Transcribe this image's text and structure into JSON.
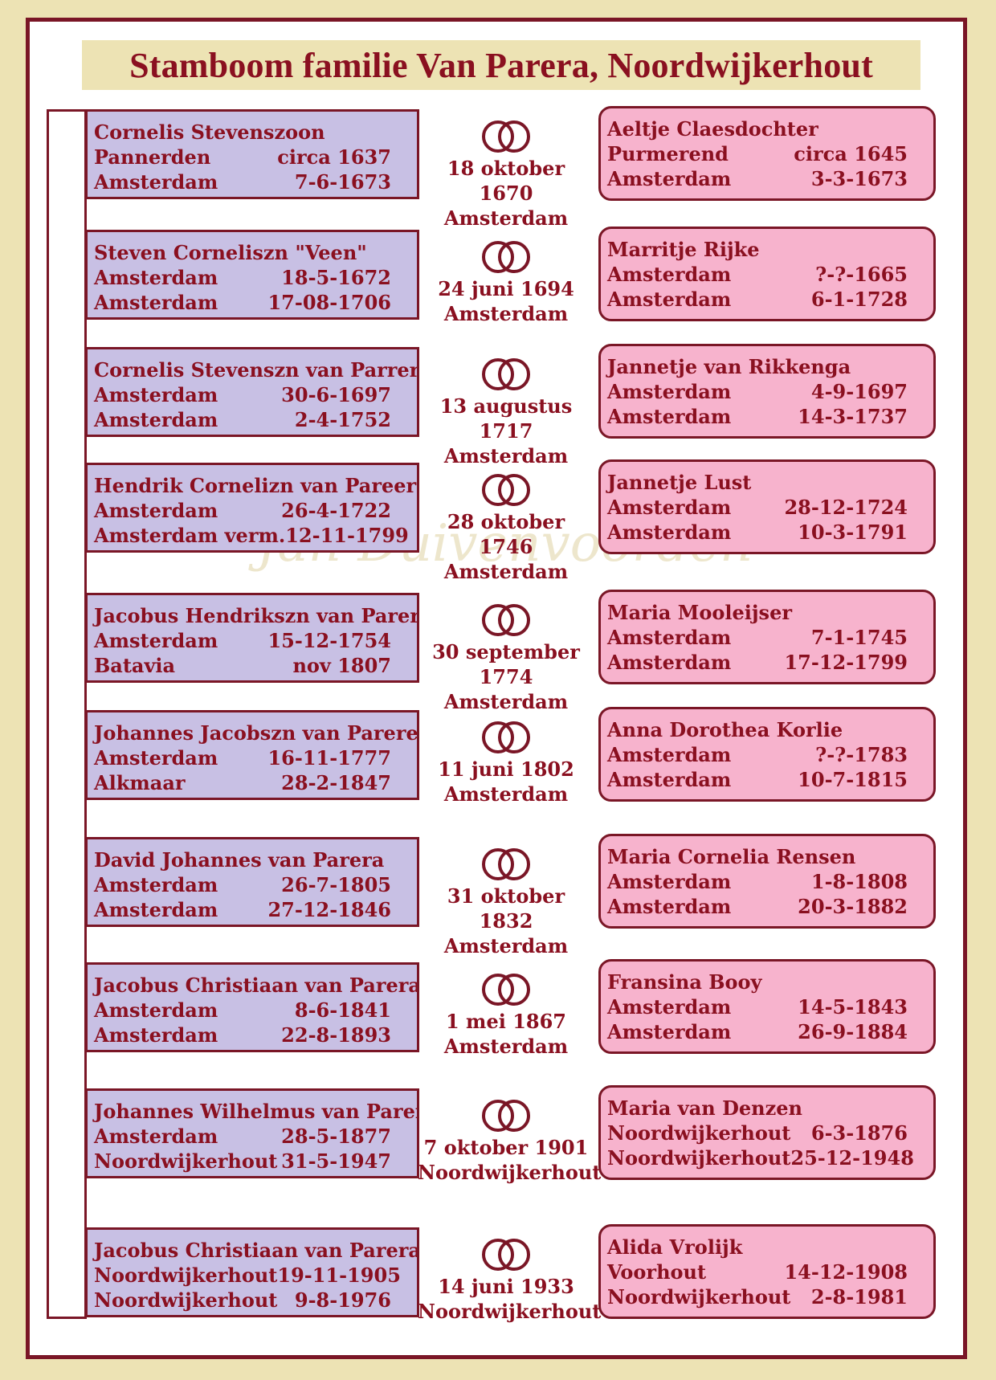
{
  "title": "Stamboom familie Van Parera, Noordwijkerhout",
  "watermark": "Jan Duivenvoorden",
  "generations": [
    {
      "husband": {
        "name": "Cornelis Stevenszoon",
        "birth_place": "Pannerden",
        "birth_date": "circa 1637",
        "death_place": "Amsterdam",
        "death_date": "7-6-1673"
      },
      "marriage": {
        "date": "18 oktober 1670",
        "place": "Amsterdam"
      },
      "wife": {
        "name": "Aeltje Claesdochter",
        "birth_place": "Purmerend",
        "birth_date": "circa 1645",
        "death_place": "Amsterdam",
        "death_date": "3-3-1673"
      }
    },
    {
      "husband": {
        "name": "Steven Corneliszn \"Veen\"",
        "birth_place": "Amsterdam",
        "birth_date": "18-5-1672",
        "death_place": "Amsterdam",
        "death_date": "17-08-1706"
      },
      "marriage": {
        "date": "24 juni 1694",
        "place": "Amsterdam"
      },
      "wife": {
        "name": "Marritje Rijke",
        "birth_place": "Amsterdam",
        "birth_date": "?-?-1665",
        "death_place": "Amsterdam",
        "death_date": "6-1-1728"
      }
    },
    {
      "husband": {
        "name": "Cornelis Stevenszn van Parrera",
        "birth_place": "Amsterdam",
        "birth_date": "30-6-1697",
        "death_place": "Amsterdam",
        "death_date": "2-4-1752"
      },
      "marriage": {
        "date": "13 augustus 1717",
        "place": "Amsterdam"
      },
      "wife": {
        "name": "Jannetje van Rikkenga",
        "birth_place": "Amsterdam",
        "birth_date": "4-9-1697",
        "death_place": "Amsterdam",
        "death_date": "14-3-1737"
      }
    },
    {
      "husband": {
        "name": "Hendrik Cornelizn van Pareeren",
        "birth_place": "Amsterdam",
        "birth_date": "26-4-1722",
        "death_place": "Amsterdam verm.",
        "death_date": "12-11-1799"
      },
      "marriage": {
        "date": "28 oktober 1746",
        "place": "Amsterdam"
      },
      "wife": {
        "name": "Jannetje Lust",
        "birth_place": "Amsterdam",
        "birth_date": "28-12-1724",
        "death_place": "Amsterdam",
        "death_date": "10-3-1791"
      }
    },
    {
      "husband": {
        "name": "Jacobus Hendrikszn van Parere",
        "birth_place": "Amsterdam",
        "birth_date": "15-12-1754",
        "death_place": "Batavia",
        "death_date": "nov 1807"
      },
      "marriage": {
        "date": "30 september 1774",
        "place": "Amsterdam"
      },
      "wife": {
        "name": "Maria Mooleijser",
        "birth_place": "Amsterdam",
        "birth_date": "7-1-1745",
        "death_place": "Amsterdam",
        "death_date": "17-12-1799"
      }
    },
    {
      "husband": {
        "name": "Johannes Jacobszn van Parere",
        "birth_place": "Amsterdam",
        "birth_date": "16-11-1777",
        "death_place": "Alkmaar",
        "death_date": "28-2-1847"
      },
      "marriage": {
        "date": "11 juni 1802",
        "place": "Amsterdam"
      },
      "wife": {
        "name": "Anna Dorothea Korlie",
        "birth_place": "Amsterdam",
        "birth_date": "?-?-1783",
        "death_place": "Amsterdam",
        "death_date": "10-7-1815"
      }
    },
    {
      "husband": {
        "name": "David Johannes van Parera",
        "birth_place": "Amsterdam",
        "birth_date": "26-7-1805",
        "death_place": "Amsterdam",
        "death_date": "27-12-1846"
      },
      "marriage": {
        "date": "31 oktober 1832",
        "place": "Amsterdam"
      },
      "wife": {
        "name": "Maria Cornelia Rensen",
        "birth_place": "Amsterdam",
        "birth_date": "1-8-1808",
        "death_place": "Amsterdam",
        "death_date": "20-3-1882"
      }
    },
    {
      "husband": {
        "name": "Jacobus Christiaan van Parera",
        "birth_place": "Amsterdam",
        "birth_date": "8-6-1841",
        "death_place": "Amsterdam",
        "death_date": "22-8-1893"
      },
      "marriage": {
        "date": "1 mei 1867",
        "place": "Amsterdam"
      },
      "wife": {
        "name": "Fransina Booy",
        "birth_place": "Amsterdam",
        "birth_date": "14-5-1843",
        "death_place": "Amsterdam",
        "death_date": "26-9-1884"
      }
    },
    {
      "husband": {
        "name": "Johannes Wilhelmus van Parera",
        "birth_place": "Amsterdam",
        "birth_date": "28-5-1877",
        "death_place": "Noordwijkerhout",
        "death_date": "31-5-1947"
      },
      "marriage": {
        "date": "7 oktober 1901",
        "place": "Noordwijkerhout"
      },
      "wife": {
        "name": "Maria van Denzen",
        "birth_place": "Noordwijkerhout",
        "birth_date": "6-3-1876",
        "death_place": "Noordwijkerhout",
        "death_date": "25-12-1948"
      }
    },
    {
      "husband": {
        "name": "Jacobus Christiaan van Parera",
        "birth_place": "Noordwijkerhout",
        "birth_date": "19-11-1905",
        "death_place": "Noordwijkerhout",
        "death_date": "9-8-1976"
      },
      "marriage": {
        "date": "14 juni 1933",
        "place": "Noordwijkerhout"
      },
      "wife": {
        "name": "Alida Vrolijk",
        "birth_place": "Voorhout",
        "birth_date": "14-12-1908",
        "death_place": "Noordwijkerhout",
        "death_date": "2-8-1981"
      }
    }
  ]
}
